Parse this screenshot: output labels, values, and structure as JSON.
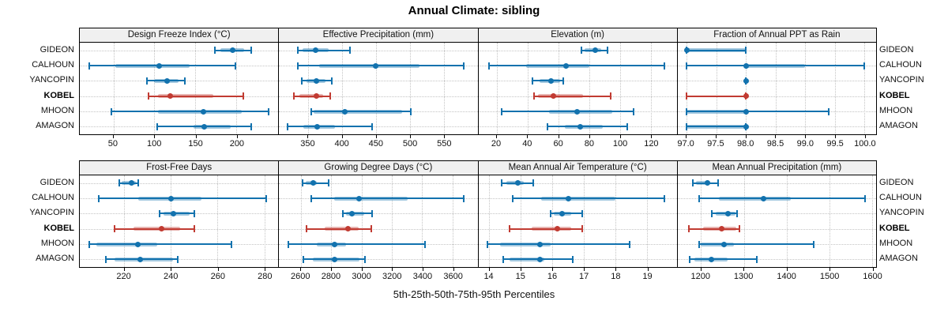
{
  "title": "Annual Climate: sibling",
  "footer": "5th-25th-50th-75th-95th Percentiles",
  "stations": [
    "GIDEON",
    "CALHOUN",
    "YANCOPIN",
    "KOBEL",
    "MHOON",
    "AMAGON"
  ],
  "highlight_station": "KOBEL",
  "colors": {
    "series": "#1272ae",
    "series_band": "rgba(18,114,174,0.38)",
    "highlight": "#c13b32",
    "highlight_band": "rgba(193,59,50,0.38)",
    "strip_bg": "#f0f0f0",
    "grid": "#c4c4c4"
  },
  "chart_data": {
    "type": "dotplot-percentiles",
    "percentiles": [
      5,
      25,
      50,
      75,
      95
    ],
    "legend_position": "bottom",
    "grid": "dotted",
    "panels": [
      {
        "label": "Design Freeze Index (°C)",
        "xlim": [
          9,
          251
        ],
        "ticks": [
          50,
          100,
          150,
          200
        ],
        "tick_labels": [
          "50",
          "100",
          "150",
          "200"
        ],
        "values": {
          "GIDEON": [
            174,
            180,
            195,
            209,
            218
          ],
          "CALHOUN": [
            21,
            52,
            106,
            143,
            199
          ],
          "YANCOPIN": [
            91,
            100,
            115,
            129,
            137
          ],
          "KOBEL": [
            93,
            104,
            119,
            172,
            208
          ],
          "MHOON": [
            48,
            104,
            160,
            206,
            239
          ],
          "AMAGON": [
            103,
            148,
            161,
            193,
            218
          ]
        }
      },
      {
        "label": "Effective Precipitation (mm)",
        "xlim": [
          307,
          600
        ],
        "ticks": [
          350,
          400,
          450,
          500,
          550
        ],
        "tick_labels": [
          "350",
          "400",
          "450",
          "500",
          "550"
        ],
        "values": {
          "GIDEON": [
            335,
            342,
            361,
            380,
            412
          ],
          "CALHOUN": [
            335,
            366,
            449,
            514,
            580
          ],
          "YANCOPIN": [
            340,
            347,
            362,
            376,
            385
          ],
          "KOBEL": [
            329,
            337,
            362,
            372,
            382
          ],
          "MHOON": [
            354,
            358,
            404,
            489,
            502
          ],
          "AMAGON": [
            320,
            343,
            363,
            389,
            444
          ]
        }
      },
      {
        "label": "Elevation (m)",
        "xlim": [
          8,
          137
        ],
        "ticks": [
          20,
          40,
          60,
          80,
          100,
          120
        ],
        "tick_labels": [
          "20",
          "40",
          "60",
          "80",
          "100",
          "120"
        ],
        "values": {
          "GIDEON": [
            75,
            77,
            84,
            88,
            92
          ],
          "CALHOUN": [
            15,
            39,
            65,
            80,
            129
          ],
          "YANCOPIN": [
            43,
            48,
            55,
            61,
            63
          ],
          "KOBEL": [
            44,
            47,
            57,
            76,
            94
          ],
          "MHOON": [
            23,
            54,
            72,
            95,
            109
          ],
          "AMAGON": [
            53,
            64,
            74,
            89,
            105
          ]
        }
      },
      {
        "label": "Fraction of Annual PPT as Rain",
        "xlim": [
          96.85,
          100.2
        ],
        "ticks": [
          97.0,
          97.5,
          98.0,
          98.5,
          99.0,
          99.5,
          100.0
        ],
        "tick_labels": [
          "97.0",
          "97.5",
          "98.0",
          "98.5",
          "99.0",
          "99.5",
          "100.0"
        ],
        "values": {
          "GIDEON": [
            97,
            97,
            97,
            98,
            98
          ],
          "CALHOUN": [
            97,
            98,
            98,
            99,
            100
          ],
          "YANCOPIN": [
            98,
            98,
            98,
            98,
            98
          ],
          "KOBEL": [
            97,
            98,
            98,
            98,
            98
          ],
          "MHOON": [
            97,
            97,
            98,
            98,
            99.4
          ],
          "AMAGON": [
            97,
            97,
            98,
            98,
            98
          ]
        }
      },
      {
        "label": "Frost-Free Days",
        "xlim": [
          201,
          286
        ],
        "ticks": [
          220,
          240,
          260,
          280
        ],
        "tick_labels": [
          "220",
          "240",
          "260",
          "280"
        ],
        "values": {
          "GIDEON": [
            218,
            219,
            223,
            225,
            226
          ],
          "CALHOUN": [
            209,
            226,
            240,
            253,
            281
          ],
          "YANCOPIN": [
            235,
            237,
            241,
            248,
            250
          ],
          "KOBEL": [
            216,
            224,
            236,
            244,
            250
          ],
          "MHOON": [
            205,
            208,
            226,
            234,
            266
          ],
          "AMAGON": [
            212,
            216,
            227,
            241,
            243
          ]
        }
      },
      {
        "label": "Growing Degree Days (°C)",
        "xlim": [
          2455,
          3765
        ],
        "ticks": [
          2600,
          2800,
          3000,
          3200,
          3400,
          3600
        ],
        "tick_labels": [
          "2600",
          "2800",
          "3000",
          "3200",
          "3400",
          "3600"
        ],
        "values": {
          "GIDEON": [
            2610,
            2630,
            2680,
            2705,
            2780
          ],
          "CALHOUN": [
            2665,
            2820,
            2985,
            3305,
            3675
          ],
          "YANCOPIN": [
            2875,
            2895,
            2935,
            3015,
            3070
          ],
          "KOBEL": [
            2635,
            2755,
            2910,
            2980,
            3065
          ],
          "MHOON": [
            2515,
            2705,
            2820,
            2895,
            3420
          ],
          "AMAGON": [
            2615,
            2680,
            2820,
            2985,
            3020
          ]
        }
      },
      {
        "label": "Mean Annual Air Temperature (°C)",
        "xlim": [
          13.65,
          19.95
        ],
        "ticks": [
          14,
          15,
          16,
          17,
          18,
          19
        ],
        "tick_labels": [
          "14",
          "15",
          "16",
          "17",
          "18",
          "19"
        ],
        "values": {
          "GIDEON": [
            14.4,
            14.55,
            14.9,
            15.1,
            15.4
          ],
          "CALHOUN": [
            14.75,
            15.65,
            16.5,
            18.0,
            19.55
          ],
          "YANCOPIN": [
            15.95,
            16.05,
            16.3,
            16.6,
            16.95
          ],
          "KOBEL": [
            14.65,
            15.35,
            16.15,
            16.6,
            16.95
          ],
          "MHOON": [
            13.95,
            14.35,
            15.6,
            15.95,
            18.45
          ],
          "AMAGON": [
            14.45,
            14.65,
            15.6,
            15.75,
            16.65
          ]
        }
      },
      {
        "label": "Mean Annual Precipitation (mm)",
        "xlim": [
          1145,
          1610
        ],
        "ticks": [
          1200,
          1300,
          1400,
          1500,
          1600
        ],
        "tick_labels": [
          "1200",
          "1300",
          "1400",
          "1500",
          "1600"
        ],
        "values": {
          "GIDEON": [
            1181,
            1188,
            1215,
            1222,
            1239
          ],
          "CALHOUN": [
            1196,
            1242,
            1347,
            1410,
            1585
          ],
          "YANCOPIN": [
            1225,
            1234,
            1263,
            1280,
            1285
          ],
          "KOBEL": [
            1172,
            1205,
            1248,
            1283,
            1290
          ],
          "MHOON": [
            1195,
            1200,
            1253,
            1277,
            1463
          ],
          "AMAGON": [
            1173,
            1185,
            1225,
            1262,
            1330
          ]
        }
      }
    ]
  }
}
